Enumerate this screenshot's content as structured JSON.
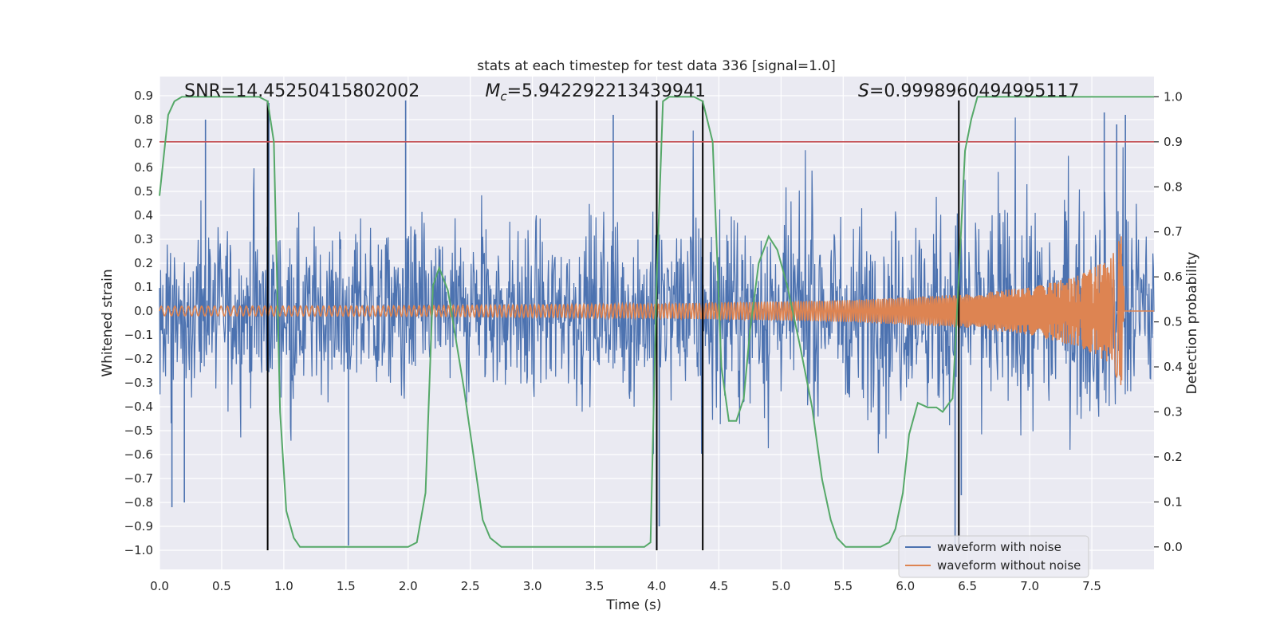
{
  "chart_data": {
    "type": "line",
    "title": "stats at each timestep for test data 336 [signal=1.0]",
    "xlabel": "Time (s)",
    "ylabel": "Whitened strain",
    "ylabel_right": "Detection probability",
    "xlim": [
      0.0,
      8.0
    ],
    "ylim": [
      -1.08,
      0.98
    ],
    "ylim_right": [
      -0.05,
      1.045
    ],
    "x_ticks": [
      0.0,
      0.5,
      1.0,
      1.5,
      2.0,
      2.5,
      3.0,
      3.5,
      4.0,
      4.5,
      5.0,
      5.5,
      6.0,
      6.5,
      7.0,
      7.5
    ],
    "x_tick_labels": [
      "0.0",
      "0.5",
      "1.0",
      "1.5",
      "2.0",
      "2.5",
      "3.0",
      "3.5",
      "4.0",
      "4.5",
      "5.0",
      "5.5",
      "6.0",
      "6.5",
      "7.0",
      "7.5"
    ],
    "y_ticks": [
      0.9,
      0.8,
      0.7,
      0.6,
      0.5,
      0.4,
      0.3,
      0.2,
      0.1,
      0.0,
      -0.1,
      -0.2,
      -0.3,
      -0.4,
      -0.5,
      -0.6,
      -0.7,
      -0.8,
      -0.9,
      -1.0
    ],
    "y_tick_labels": [
      "0.9",
      "0.8",
      "0.7",
      "0.6",
      "0.5",
      "0.4",
      "0.3",
      "0.2",
      "0.1",
      "0.0",
      "−0.1",
      "−0.2",
      "−0.3",
      "−0.4",
      "−0.5",
      "−0.6",
      "−0.7",
      "−0.8",
      "−0.9",
      "−1.0"
    ],
    "y_right_ticks": [
      1.0,
      0.9,
      0.8,
      0.7,
      0.6,
      0.5,
      0.4,
      0.3,
      0.2,
      0.1,
      0.0
    ],
    "y_right_tick_labels": [
      "1.0",
      "0.9",
      "0.8",
      "0.7",
      "0.6",
      "0.5",
      "0.4",
      "0.3",
      "0.2",
      "0.1",
      "0.0"
    ],
    "annotations": [
      {
        "id": "snr",
        "text": "SNR=14.45250415802002",
        "x": 0.2
      },
      {
        "id": "mc",
        "text": "M",
        "sub": "c",
        "rest": "=5.942292213439941",
        "x": 2.62
      },
      {
        "id": "s",
        "text": "S",
        "rest": "=0.9998960494995117",
        "x": 5.62
      }
    ],
    "threshold_line": {
      "y_right": 0.9,
      "color": "#c44e52"
    },
    "event_lines_x": [
      0.87,
      4.0,
      4.37,
      6.43
    ],
    "event_lines_yrange": [
      -1.0,
      0.88
    ],
    "series": [
      {
        "name": "waveform with noise",
        "color": "#4c72b0",
        "envelope": [
          [
            0.0,
            0.3
          ],
          [
            2.0,
            0.31
          ],
          [
            4.0,
            0.33
          ],
          [
            6.0,
            0.36
          ],
          [
            7.8,
            0.4
          ],
          [
            8.0,
            0.3
          ]
        ],
        "extreme_spikes": [
          [
            0.88,
            0.87
          ],
          [
            1.52,
            -0.98
          ],
          [
            1.98,
            0.88
          ],
          [
            2.25,
            0.19
          ],
          [
            3.65,
            0.82
          ],
          [
            4.02,
            -0.9
          ],
          [
            6.4,
            -0.99
          ],
          [
            6.45,
            -0.77
          ],
          [
            7.6,
            0.83
          ],
          [
            7.7,
            0.78
          ],
          [
            7.77,
            0.82
          ],
          [
            0.37,
            0.8
          ],
          [
            0.1,
            -0.82
          ],
          [
            0.2,
            -0.8
          ]
        ]
      },
      {
        "name": "waveform without noise",
        "color": "#dd8452",
        "amplitude_points": [
          [
            0.0,
            0.02
          ],
          [
            2.0,
            0.022
          ],
          [
            4.0,
            0.03
          ],
          [
            5.5,
            0.045
          ],
          [
            6.5,
            0.07
          ],
          [
            7.0,
            0.1
          ],
          [
            7.4,
            0.15
          ],
          [
            7.65,
            0.22
          ],
          [
            7.75,
            0.33
          ],
          [
            7.76,
            0.0
          ],
          [
            8.0,
            0.0
          ]
        ]
      },
      {
        "name": "detection probability",
        "color": "#55a868",
        "axis": "right",
        "x": [
          0.0,
          0.07,
          0.12,
          0.18,
          0.25,
          0.4,
          0.8,
          0.87,
          0.92,
          0.97,
          1.02,
          1.08,
          1.13,
          1.2,
          1.5,
          2.0,
          2.07,
          2.14,
          2.2,
          2.25,
          2.32,
          2.45,
          2.6,
          2.66,
          2.75,
          3.5,
          3.9,
          3.95,
          4.0,
          4.05,
          4.1,
          4.3,
          4.37,
          4.45,
          4.52,
          4.58,
          4.64,
          4.7,
          4.75,
          4.82,
          4.9,
          4.97,
          5.05,
          5.15,
          5.25,
          5.33,
          5.4,
          5.45,
          5.52,
          5.8,
          5.87,
          5.92,
          5.98,
          6.03,
          6.1,
          6.18,
          6.25,
          6.3,
          6.38,
          6.43,
          6.48,
          6.53,
          6.58,
          7.0,
          7.5,
          8.0
        ],
        "values": [
          0.78,
          0.96,
          0.99,
          1.0,
          1.0,
          1.0,
          1.0,
          0.99,
          0.9,
          0.3,
          0.08,
          0.02,
          0.0,
          0.0,
          0.0,
          0.0,
          0.01,
          0.12,
          0.58,
          0.62,
          0.57,
          0.35,
          0.06,
          0.02,
          0.0,
          0.0,
          0.0,
          0.01,
          0.6,
          0.99,
          1.0,
          1.0,
          0.99,
          0.9,
          0.4,
          0.28,
          0.28,
          0.33,
          0.48,
          0.63,
          0.69,
          0.66,
          0.58,
          0.45,
          0.31,
          0.15,
          0.06,
          0.02,
          0.0,
          0.0,
          0.01,
          0.04,
          0.12,
          0.25,
          0.32,
          0.31,
          0.31,
          0.3,
          0.33,
          0.6,
          0.88,
          0.95,
          1.0,
          1.0,
          1.0,
          1.0
        ]
      }
    ],
    "legend": {
      "placement": "lower-right",
      "entries": [
        {
          "label": "waveform with noise",
          "color": "#4c72b0"
        },
        {
          "label": "waveform without noise",
          "color": "#dd8452"
        }
      ]
    }
  }
}
